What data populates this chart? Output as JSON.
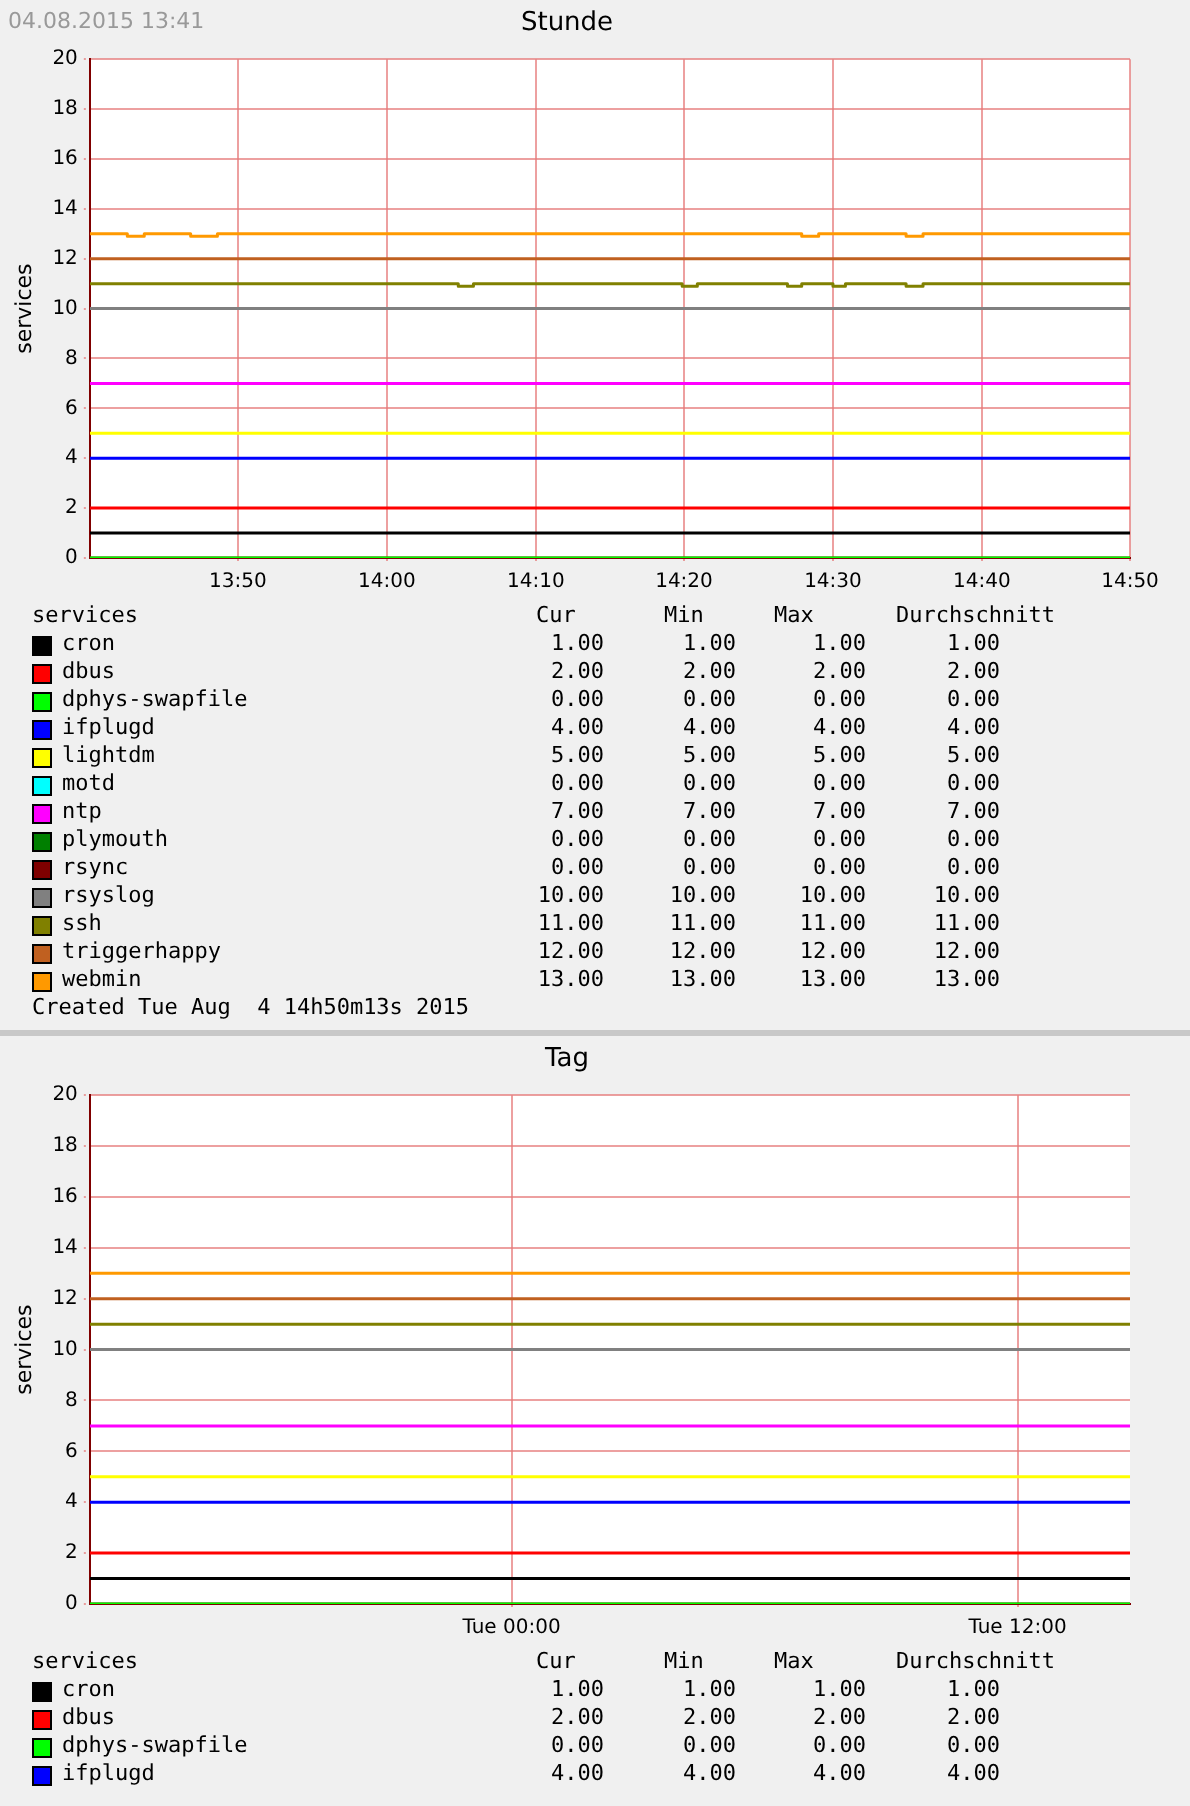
{
  "chart_data": [
    {
      "type": "line",
      "title": "Stunde",
      "subtitle": "04.08.2015 13:41",
      "ylabel": "services",
      "legend_title": "services",
      "legend": "bottom",
      "grid": true,
      "xlim": [
        13.667,
        14.833
      ],
      "xticks": [
        {
          "value": 13.833,
          "label": "13:50"
        },
        {
          "value": 14,
          "label": "14:00"
        },
        {
          "value": 14.167,
          "label": "14:10"
        },
        {
          "value": 14.333,
          "label": "14:20"
        },
        {
          "value": 14.5,
          "label": "14:30"
        },
        {
          "value": 14.667,
          "label": "14:40"
        },
        {
          "value": 14.833,
          "label": "14:50"
        }
      ],
      "ylim": [
        0,
        20
      ],
      "yticks": [
        0,
        2,
        4,
        6,
        8,
        10,
        12,
        14,
        16,
        18,
        20
      ],
      "series": [
        {
          "name": "cron",
          "color": "#000000",
          "x": [
            13.667,
            14.833
          ],
          "values": [
            1,
            1
          ]
        },
        {
          "name": "dbus",
          "color": "#ff0000",
          "x": [
            13.667,
            14.833
          ],
          "values": [
            2,
            2
          ]
        },
        {
          "name": "dphys-swapfile",
          "color": "#00ff00",
          "x": [
            13.667,
            14.833
          ],
          "values": [
            0,
            0
          ]
        },
        {
          "name": "ifplugd",
          "color": "#0000ff",
          "x": [
            13.667,
            14.833
          ],
          "values": [
            4,
            4
          ]
        },
        {
          "name": "lightdm",
          "color": "#ffff00",
          "x": [
            13.667,
            14.833
          ],
          "values": [
            5,
            5
          ]
        },
        {
          "name": "motd",
          "color": "#00ffff",
          "values": [
            null
          ]
        },
        {
          "name": "ntp",
          "color": "#ff00ff",
          "x": [
            13.667,
            14.833
          ],
          "values": [
            7,
            7
          ]
        },
        {
          "name": "plymouth",
          "color": "#007f00",
          "values": [
            null
          ]
        },
        {
          "name": "rsync",
          "color": "#7f0000",
          "x": [
            13.667,
            14.833
          ],
          "values": [
            0,
            0
          ]
        },
        {
          "name": "rsyslog",
          "color": "#808080",
          "x": [
            13.667,
            14.833
          ],
          "values": [
            10,
            10
          ]
        },
        {
          "name": "ssh",
          "color": "#808000",
          "x": [
            13.667,
            14.08,
            14.08,
            14.097,
            14.097,
            14.331,
            14.331,
            14.348,
            14.348,
            14.449,
            14.449,
            14.465,
            14.465,
            14.5,
            14.5,
            14.514,
            14.514,
            14.582,
            14.582,
            14.601,
            14.601,
            14.833
          ],
          "values": [
            11,
            11,
            10.9,
            10.9,
            11,
            11,
            10.9,
            10.9,
            11,
            11,
            10.9,
            10.9,
            11,
            11,
            10.9,
            10.9,
            11,
            11,
            10.9,
            10.9,
            11,
            11
          ]
        },
        {
          "name": "triggerhappy",
          "color": "#c06020",
          "x": [
            13.667,
            14.833
          ],
          "values": [
            12,
            12
          ]
        },
        {
          "name": "webmin",
          "color": "#ff9900",
          "x": [
            13.667,
            13.709,
            13.709,
            13.728,
            13.728,
            13.78,
            13.78,
            13.81,
            13.81,
            14.465,
            14.465,
            14.484,
            14.484,
            14.582,
            14.582,
            14.601,
            14.601,
            14.833
          ],
          "values": [
            13,
            13,
            12.9,
            12.9,
            13,
            13,
            12.9,
            12.9,
            13,
            13,
            12.9,
            12.9,
            13,
            13,
            12.9,
            12.9,
            13,
            13
          ]
        }
      ],
      "annotations": [
        "Cur",
        "Min",
        "Max",
        "Durchschnitt",
        "1.00",
        "1.00",
        "1.00",
        "1.00",
        "2.00",
        "2.00",
        "2.00",
        "2.00",
        "0.00",
        "0.00",
        "0.00",
        "0.00",
        "4.00",
        "4.00",
        "4.00",
        "4.00",
        "5.00",
        "5.00",
        "5.00",
        "5.00",
        "0.00",
        "0.00",
        "0.00",
        "0.00",
        "7.00",
        "7.00",
        "7.00",
        "7.00",
        "0.00",
        "0.00",
        "0.00",
        "0.00",
        "0.00",
        "0.00",
        "0.00",
        "0.00",
        "10.00",
        "10.00",
        "10.00",
        "10.00",
        "11.00",
        "11.00",
        "11.00",
        "11.00",
        "12.00",
        "12.00",
        "12.00",
        "12.00",
        "13.00",
        "13.00",
        "13.00",
        "13.00",
        "Created Tue Aug  4 14h50m13s 2015"
      ]
    },
    {
      "type": "line",
      "title": "Tag",
      "ylabel": "services",
      "legend_title": "services",
      "legend": "bottom",
      "grid": true,
      "xlim": [
        "2015-08-03T14:00",
        "2015-08-04T14:40"
      ],
      "xticks": [
        {
          "value": "2015-08-04T00:00",
          "label": "Tue 00:00"
        },
        {
          "value": "2015-08-04T12:00",
          "label": "Tue 12:00"
        }
      ],
      "ylim": [
        0,
        20
      ],
      "yticks": [
        0,
        2,
        4,
        6,
        8,
        10,
        12,
        14,
        16,
        18,
        20
      ],
      "series": [
        {
          "name": "cron",
          "color": "#000000",
          "x": [
            "2015-08-03T14:00",
            "2015-08-04T14:40"
          ],
          "values": [
            1,
            1
          ]
        },
        {
          "name": "dbus",
          "color": "#ff0000",
          "x": [
            "2015-08-03T14:00",
            "2015-08-04T14:40"
          ],
          "values": [
            2,
            2
          ]
        },
        {
          "name": "dphys-swapfile",
          "color": "#00ff00",
          "x": [
            "2015-08-03T14:00",
            "2015-08-04T14:40"
          ],
          "values": [
            0,
            0
          ]
        },
        {
          "name": "ifplugd",
          "color": "#0000ff",
          "x": [
            "2015-08-03T14:00",
            "2015-08-04T14:40"
          ],
          "values": [
            4,
            4
          ]
        },
        {
          "color": "#ffff00",
          "x": [
            "2015-08-03T14:00",
            "2015-08-04T14:40"
          ],
          "values": [
            5,
            5
          ]
        },
        {
          "color": "#00ffff",
          "values": [
            null
          ]
        },
        {
          "color": "#ff00ff",
          "x": [
            "2015-08-03T14:00",
            "2015-08-04T14:40"
          ],
          "values": [
            7,
            7
          ]
        },
        {
          "color": "#007f00",
          "values": [
            null
          ]
        },
        {
          "color": "#7f0000",
          "x": [
            "2015-08-03T14:00",
            "2015-08-04T14:40"
          ],
          "values": [
            0,
            0
          ]
        },
        {
          "color": "#808080",
          "x": [
            "2015-08-03T14:00",
            "2015-08-04T14:40"
          ],
          "values": [
            10,
            10
          ]
        },
        {
          "color": "#808000",
          "x": [
            "2015-08-03T14:00",
            "2015-08-04T14:40"
          ],
          "values": [
            11,
            11
          ]
        },
        {
          "color": "#c06020",
          "x": [
            "2015-08-03T14:00",
            "2015-08-04T14:40"
          ],
          "values": [
            12,
            12
          ]
        },
        {
          "color": "#ff9900",
          "x": [
            "2015-08-03T14:00",
            "2015-08-04T14:40"
          ],
          "values": [
            13,
            13
          ]
        }
      ],
      "annotations": [
        "Cur",
        "Min",
        "Max",
        "Durchschnitt",
        "1.00",
        "1.00",
        "1.00",
        "1.00",
        "2.00",
        "2.00",
        "2.00",
        "2.00",
        "0.00",
        "0.00",
        "0.00",
        "0.00",
        "4.00",
        "4.00",
        "4.00",
        "4.00"
      ]
    }
  ]
}
